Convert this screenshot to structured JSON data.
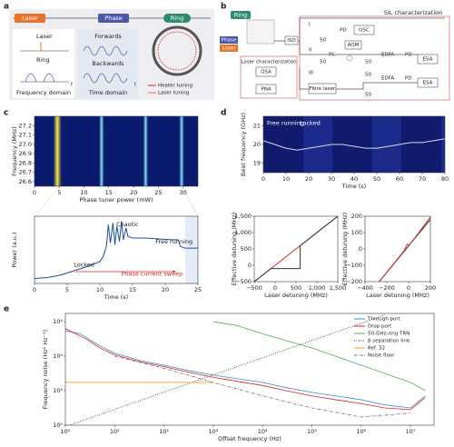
{
  "panel_labels": [
    "a",
    "b",
    "c",
    "d",
    "e"
  ],
  "a": {
    "laser_chip": "Laser",
    "phase_chip": "Phase",
    "ring_chip": "Ring",
    "laser": "Laser",
    "ring": "Ring",
    "frequency_domain": "Frequency domain",
    "forwards": "Forwards",
    "backwards": "Backwards",
    "time_domain": "Time domain",
    "f": "f",
    "t": "t",
    "heater_tuning": "Heater tuning",
    "laser_tuning": "Laser tuning"
  },
  "b": {
    "ring": "Ring",
    "phase": "Phase",
    "laser": "Laser",
    "iso": "ISO",
    "sil": "SIL characterization",
    "laser_char": "Laser characterization",
    "osa": "OSA",
    "pna": "PNA",
    "fibre_laser": "Fibre laser",
    "pd": [
      "PD",
      "PD",
      "PD"
    ],
    "osc": "OSC",
    "aom": "AOM",
    "pc": "PC",
    "edfa": [
      "EDFA",
      "EDFA"
    ],
    "esa": [
      "ESA",
      "ESA"
    ],
    "paths": [
      "I",
      "II",
      "III"
    ],
    "couplers": [
      "50",
      "50",
      "50",
      "50",
      "50"
    ]
  },
  "chart_data": [
    {
      "type": "heatmap",
      "xlabel": "Phase tuner power (mW)",
      "ylabel": "Frequency (MHz)",
      "xlim": [
        0,
        33
      ],
      "xticks": [
        0,
        5,
        10,
        15,
        20,
        25,
        30
      ],
      "ylim": [
        26.55,
        27.3
      ],
      "yticks": [
        26.6,
        26.7,
        26.8,
        26.9,
        {
          "value": 27,
          "label": "27.0"
        },
        27.1,
        27.2
      ]
    },
    {
      "type": "line",
      "xlabel": "Time (s)",
      "ylabel": "Power (a.u.)",
      "xlim": [
        0,
        25
      ],
      "xticks": [
        0,
        5,
        10,
        15,
        20,
        25
      ],
      "ylim": [
        0,
        4
      ],
      "annotations": [
        "Locked",
        "Chaotic",
        "Free running",
        "Phase current sweep"
      ],
      "series": [
        {
          "color": "#1f4e9c",
          "x": [
            0,
            2,
            4,
            6,
            8,
            10,
            10.5,
            11,
            11.3,
            11.6,
            12,
            12.3,
            12.6,
            13,
            13.3,
            13.6,
            14,
            14.3,
            15,
            17,
            19,
            21,
            22,
            22.3,
            23,
            25
          ],
          "values": [
            0.3,
            0.35,
            0.5,
            0.75,
            1.0,
            1.3,
            1.6,
            2.2,
            3.5,
            2.4,
            3.6,
            2.3,
            3.4,
            2.5,
            3.7,
            2.6,
            3.3,
            2.8,
            2.7,
            2.7,
            2.65,
            2.6,
            2.6,
            2.2,
            2.1,
            2.1
          ]
        }
      ]
    },
    {
      "type": "heatmap",
      "xlabel": "Time (s)",
      "ylabel": "Beat frequency (GHz)",
      "xlim": [
        0,
        80
      ],
      "xticks": [
        0,
        10,
        20,
        30,
        40,
        50,
        60,
        70,
        80
      ],
      "ylim": [
        18.5,
        21.5
      ],
      "yticks": [
        19,
        20,
        21
      ],
      "annotations": [
        "Free running",
        "Locked"
      ],
      "series": [
        {
          "color": "#d8d8e8",
          "x": [
            0,
            5,
            10,
            15,
            20,
            25,
            30,
            35,
            40,
            45,
            50,
            55,
            60,
            65,
            70,
            75,
            80
          ],
          "values": [
            20.2,
            20.0,
            19.8,
            19.7,
            19.8,
            19.9,
            20.0,
            20.0,
            19.9,
            19.8,
            19.8,
            19.9,
            20.0,
            20.1,
            20.1,
            20.2,
            20.3
          ]
        }
      ]
    },
    {
      "type": "line",
      "xlabel": "Laser detuning (MHz)",
      "ylabel": "Effective detuning (MHz)",
      "xlim": [
        -500,
        1500
      ],
      "xticks": [
        {
          "value": -500,
          "label": "−500"
        },
        0,
        500,
        {
          "value": 1000,
          "label": "1,000"
        },
        {
          "value": 1500,
          "label": "1,500"
        }
      ],
      "ylim": [
        -500,
        1500
      ],
      "yticks": [
        {
          "value": -500,
          "label": "−500"
        },
        0,
        500,
        {
          "value": 1000,
          "label": "1,000"
        },
        {
          "value": 1500,
          "label": "1,500"
        }
      ],
      "series": [
        {
          "color": "#d62728",
          "x": [
            -500,
            1500
          ],
          "values": [
            -500,
            1500
          ]
        },
        {
          "color": "#333333",
          "x": [
            -500,
            -100,
            600,
            600,
            1500
          ],
          "values": [
            -500,
            -100,
            -100,
            600,
            1500
          ]
        }
      ]
    },
    {
      "type": "line",
      "xlabel": "Laser detuning (MHz)",
      "ylabel": "Effective detuning (MHz)",
      "xlim": [
        -400,
        200
      ],
      "xticks": [
        {
          "value": -400,
          "label": "−400"
        },
        {
          "value": -200,
          "label": "−200"
        },
        0,
        200
      ],
      "ylim": [
        -200,
        200
      ],
      "yticks": [
        {
          "value": -200,
          "label": "−200"
        },
        {
          "value": -100,
          "label": "−100"
        },
        0,
        100,
        200
      ],
      "series": [
        {
          "color": "#333333",
          "x": [
            -270,
            200
          ],
          "values": [
            -200,
            180
          ]
        },
        {
          "color": "#d62728",
          "x": [
            -270,
            -100,
            -40,
            -20,
            -10,
            0,
            50,
            200
          ],
          "values": [
            -200,
            -60,
            -10,
            20,
            30,
            20,
            60,
            195
          ]
        }
      ]
    },
    {
      "type": "line",
      "xscale": "log",
      "yscale": "log",
      "xlabel": "Offset frequency (Hz)",
      "ylabel": "Frequency noise (Hz² Hz⁻¹)",
      "legend": "upper right",
      "xlim": [
        1,
        30000000
      ],
      "xticks": [
        {
          "value": 1,
          "label": "10⁰"
        },
        {
          "value": 10,
          "label": "10¹"
        },
        {
          "value": 100,
          "label": "10²"
        },
        {
          "value": 1000,
          "label": "10³"
        },
        {
          "value": 10000,
          "label": "10⁴"
        },
        {
          "value": 100000,
          "label": "10⁵"
        },
        {
          "value": 1000000,
          "label": "10⁶"
        },
        {
          "value": 10000000,
          "label": "10⁷"
        }
      ],
      "ylim": [
        1,
        3000000
      ],
      "yticks": [
        {
          "value": 1,
          "label": "10⁰"
        },
        {
          "value": 100,
          "label": "10²"
        },
        {
          "value": 10000,
          "label": "10⁴"
        },
        {
          "value": 1000000,
          "label": "10⁶"
        }
      ],
      "series": [
        {
          "name": "Through port",
          "color": "#3a8fd0",
          "linestyle": "solid",
          "x": [
            1,
            2,
            3,
            5,
            10,
            30,
            100,
            300,
            1000,
            3000,
            10000,
            30000,
            100000,
            300000,
            1000000,
            3000000,
            10000000,
            20000000
          ],
          "values": [
            300000,
            200000,
            100000,
            40000,
            15000,
            6000,
            3000,
            1500,
            800,
            500,
            300,
            150,
            80,
            50,
            30,
            15,
            10,
            50
          ]
        },
        {
          "name": "Drop port",
          "color": "#e02020",
          "linestyle": "solid",
          "x": [
            1,
            2,
            3,
            5,
            10,
            30,
            100,
            300,
            1000,
            3000,
            10000,
            30000,
            100000,
            300000,
            1000000,
            3000000,
            10000000,
            20000000
          ],
          "values": [
            400000,
            150000,
            80000,
            30000,
            12000,
            5000,
            2500,
            1200,
            600,
            350,
            200,
            100,
            50,
            30,
            18,
            10,
            8,
            40
          ]
        },
        {
          "name": "50-GHz-ring TRN",
          "color": "#4caf50",
          "linestyle": "solid",
          "x": [
            1000,
            3000,
            10000,
            30000,
            100000,
            300000,
            1000000,
            3000000,
            10000000,
            20000000
          ],
          "values": [
            1000000,
            600000,
            200000,
            80000,
            30000,
            10000,
            3000,
            1000,
            300,
            100
          ]
        },
        {
          "name": "β separation line",
          "color": "#333333",
          "linestyle": "dotted",
          "x": [
            1.2,
            3000000
          ],
          "values": [
            1,
            2400000
          ]
        },
        {
          "name": "Ref. 32",
          "color": "#f0a020",
          "linestyle": "solid",
          "x": [
            1,
            1000
          ],
          "values": [
            300,
            300
          ]
        },
        {
          "name": "Noise floor",
          "color": "#666666",
          "linestyle": "dashdot",
          "x": [
            10,
            100,
            1000,
            10000,
            100000,
            1000000,
            10000000
          ],
          "values": [
            10000,
            2000,
            300,
            50,
            10,
            3,
            5
          ]
        }
      ]
    }
  ]
}
